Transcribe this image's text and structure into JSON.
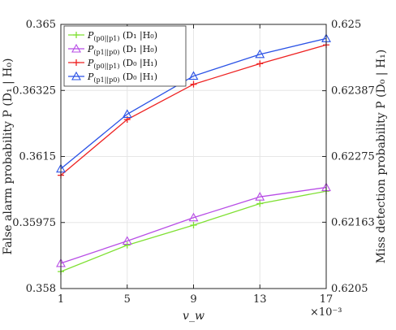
{
  "chart_data": {
    "type": "line",
    "x": [
      1,
      5,
      9,
      13,
      17
    ],
    "xlabel": "v_w",
    "x_multiplier": "×10⁻³",
    "xlim": [
      1,
      17
    ],
    "xticks": [
      "1",
      "5",
      "9",
      "13",
      "17"
    ],
    "ylabel_left": "False alarm probability P (D₁ | H₀)",
    "ylim_left": [
      0.358,
      0.365
    ],
    "yticks_left": [
      "0.358",
      "0.35975",
      "0.3615",
      "0.36325",
      "0.365"
    ],
    "ylabel_right": "Miss detection probability P (D₀ | H₁)",
    "ylim_right": [
      0.6205,
      0.625
    ],
    "yticks_right": [
      "0.6205",
      "0.62163",
      "0.62275",
      "0.62387",
      "0.625"
    ],
    "grid": true,
    "legend_position": "top-left",
    "series": [
      {
        "name": "P(p0||p1) (D1 | H0)",
        "name_main": "P",
        "name_sub": "(p0||p1)",
        "name_rest": " (D₁ |H₀)",
        "axis": "left",
        "marker": "plus",
        "color": "#7fe033",
        "values": [
          0.35845,
          0.35915,
          0.35968,
          0.36025,
          0.36058
        ]
      },
      {
        "name": "P(p1||p0) (D1 | H0)",
        "name_main": "P",
        "name_sub": "(p1||p0)",
        "name_rest": " (D₁ |H₀)",
        "axis": "left",
        "marker": "triangle",
        "color": "#b84ee6",
        "values": [
          0.35867,
          0.35926,
          0.35988,
          0.36043,
          0.36068
        ]
      },
      {
        "name": "P(p0||p1) (D0 | H1)",
        "name_main": "P",
        "name_sub": "(p0||p1)",
        "name_rest": " (D₀ |H₁)",
        "axis": "right",
        "marker": "plus",
        "color": "#ee2222",
        "values": [
          0.62243,
          0.62338,
          0.62398,
          0.62433,
          0.62465
        ]
      },
      {
        "name": "P(p1||p0) (D0 | H1)",
        "name_main": "P",
        "name_sub": "(p1||p0)",
        "name_rest": " (D₀ |H₁)",
        "axis": "right",
        "marker": "triangle",
        "color": "#2a52e6",
        "values": [
          0.62254,
          0.62347,
          0.62412,
          0.62449,
          0.62476
        ]
      }
    ]
  }
}
